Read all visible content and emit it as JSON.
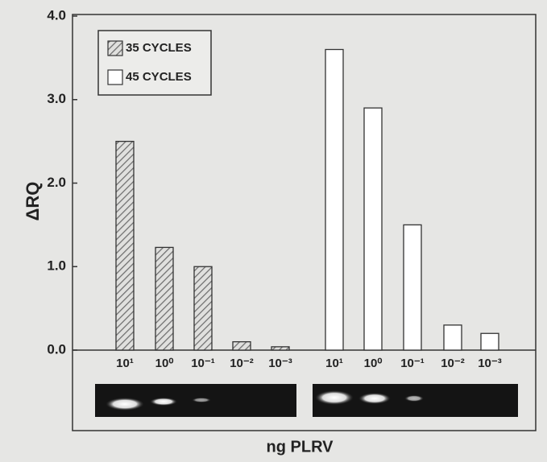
{
  "chart_data": {
    "type": "bar",
    "y_label": "ΔRQ",
    "x_label": "ng PLRV",
    "categories": [
      "10¹",
      "10⁰",
      "10⁻¹",
      "10⁻²",
      "10⁻³",
      "10¹",
      "10⁰",
      "10⁻¹",
      "10⁻²",
      "10⁻³"
    ],
    "series": [
      {
        "name": "35 CYCLES",
        "color": "#6e6e6e",
        "hatch": true,
        "values": [
          2.5,
          1.23,
          1.0,
          0.1,
          0.04,
          null,
          null,
          null,
          null,
          null
        ]
      },
      {
        "name": "45 CYCLES",
        "color": "#ffffff",
        "hatch": false,
        "values": [
          null,
          null,
          null,
          null,
          null,
          3.6,
          2.9,
          1.5,
          0.3,
          0.2
        ]
      }
    ],
    "ylim": [
      0,
      4
    ],
    "yticks": [
      {
        "value": 0,
        "label": "0.0"
      },
      {
        "value": 1,
        "label": "1.0"
      },
      {
        "value": 2,
        "label": "2.0"
      },
      {
        "value": 3,
        "label": "3.0"
      },
      {
        "value": 4,
        "label": "4.0"
      }
    ],
    "legend": "upper left"
  }
}
